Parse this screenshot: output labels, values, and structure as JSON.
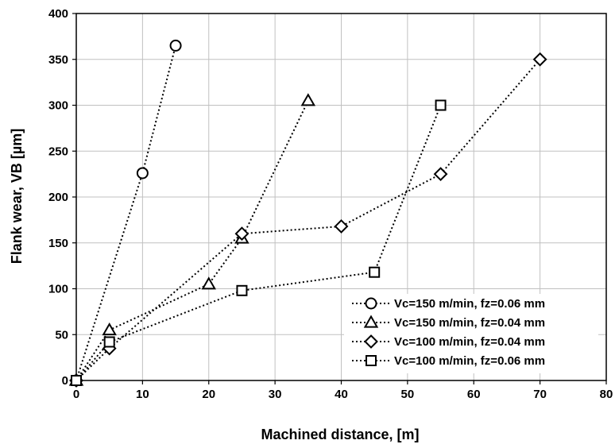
{
  "chart_data": {
    "type": "scatter",
    "title": "",
    "xlabel": "Machined distance, [m]",
    "ylabel": "Flank wear, VB [µm]",
    "xlim": [
      0,
      80
    ],
    "ylim": [
      0,
      400
    ],
    "xticks": [
      0,
      10,
      20,
      30,
      40,
      50,
      60,
      70,
      80
    ],
    "yticks": [
      0,
      50,
      100,
      150,
      200,
      250,
      300,
      350,
      400
    ],
    "grid": true,
    "legend_position": "bottom-right",
    "line_style": "dotted",
    "series": [
      {
        "name": "Vc=150 m/min, fz=0.06 mm",
        "marker": "circle",
        "x": [
          0,
          10,
          15
        ],
        "y": [
          0,
          226,
          365
        ]
      },
      {
        "name": "Vc=150 m/min, fz=0.04 mm",
        "marker": "triangle",
        "x": [
          0,
          5,
          20,
          25,
          35
        ],
        "y": [
          0,
          55,
          105,
          155,
          305
        ]
      },
      {
        "name": "Vc=100 m/min, fz=0.04 mm",
        "marker": "diamond",
        "x": [
          0,
          5,
          25,
          40,
          55,
          70
        ],
        "y": [
          0,
          35,
          160,
          168,
          225,
          350
        ]
      },
      {
        "name": "Vc=100 m/min, fz=0.06 mm",
        "marker": "square",
        "x": [
          0,
          5,
          25,
          45,
          55
        ],
        "y": [
          0,
          42,
          98,
          118,
          300
        ]
      }
    ],
    "colors": {
      "line": "#000000",
      "marker_fill": "#ffffff",
      "grid": "#c0c0c0"
    }
  }
}
